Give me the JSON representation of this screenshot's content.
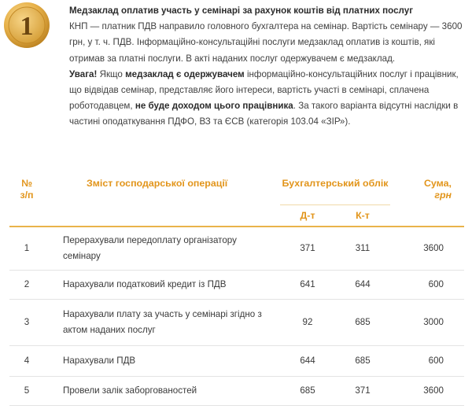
{
  "badge": {
    "number": "1",
    "color": "#e8b24a"
  },
  "intro": {
    "title": "Медзаклад оплатив участь у семінарі за рахунок коштів від платних послуг",
    "para1": "КНП — платник ПДВ направило головного бухгалтера на семінар. Вартість семінару — 3600 грн, у т. ч. ПДВ. Інформаційно-консультаційні послуги медзаклад оплатив із коштів, які отримав за платні послуги. В акті наданих послуг одержувачем є медзаклад.",
    "warn_label": "Увага!",
    "warn_t1": " Якщо ",
    "warn_b1": "медзаклад є одержувачем",
    "warn_t2": " інформаційно-консультаційних послуг і працівник, що відвідав семінар, представляє його інтереси, вартість участі в семінарі, сплачена роботодавцем, ",
    "warn_b2": "не буде доходом цього працівника",
    "warn_t3": ". За такого варіанта відсутні наслідки в частині оподаткування ПДФО, ВЗ та ЄСВ (категорія 103.04 «ЗІР»)."
  },
  "table": {
    "headers": {
      "num_line1": "№",
      "num_line2": "з/п",
      "content": "Зміст господарської операції",
      "accounting": "Бухгалтерський облік",
      "debit": "Д-т",
      "credit": "К-т",
      "sum_label": "Сума,",
      "sum_unit": "грн"
    },
    "rows": [
      {
        "n": "1",
        "content": "Перерахували передоплату організатору семінару",
        "debit": "371",
        "credit": "311",
        "sum": "3600"
      },
      {
        "n": "2",
        "content": "Нарахували податковий кредит із ПДВ",
        "debit": "641",
        "credit": "644",
        "sum": "600"
      },
      {
        "n": "3",
        "content": "Нарахували плату за участь у семінарі згідно з актом наданих послуг",
        "debit": "92",
        "credit": "685",
        "sum": "3000"
      },
      {
        "n": "4",
        "content": "Нарахували ПДВ",
        "debit": "644",
        "credit": "685",
        "sum": "600"
      },
      {
        "n": "5",
        "content": "Провели залік заборгованостей",
        "debit": "685",
        "credit": "371",
        "sum": "3600"
      }
    ]
  }
}
